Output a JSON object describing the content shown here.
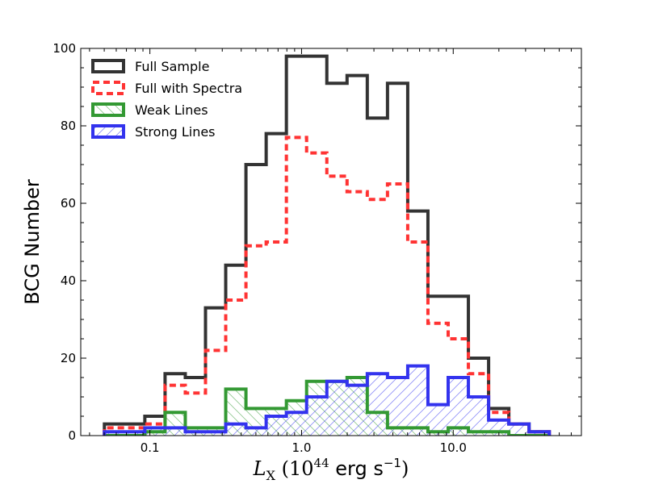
{
  "chart_data": {
    "type": "histogram",
    "title": "",
    "xlabel": "$L_\\mathrm{X}$  $(10^{44}$ erg s$^{-1})$",
    "xlabel_parts": {
      "var": "L",
      "sub": "X",
      "open": "(10",
      "exp": "44",
      "unit": " erg s",
      "unit_exp": "−1",
      "close": ")"
    },
    "ylabel": "BCG Number",
    "x_scale": "log",
    "xlim": [
      0.035,
      70
    ],
    "ylim": [
      0,
      100
    ],
    "x_ticks": [
      {
        "value": 0.1,
        "label": "0.1"
      },
      {
        "value": 1.0,
        "label": "1.0"
      },
      {
        "value": 10.0,
        "label": "10.0"
      }
    ],
    "y_ticks": [
      {
        "value": 0,
        "label": "0"
      },
      {
        "value": 20,
        "label": "20"
      },
      {
        "value": 40,
        "label": "40"
      },
      {
        "value": 60,
        "label": "60"
      },
      {
        "value": 80,
        "label": "80"
      },
      {
        "value": 100,
        "label": "100"
      }
    ],
    "log_bin_start": -1.3,
    "log_bin_width": 0.13333,
    "series": [
      {
        "name": "Full Sample",
        "color": "#333333",
        "style": "solid",
        "values": [
          3,
          3,
          5,
          16,
          15,
          33,
          44,
          70,
          78,
          98,
          98,
          91,
          93,
          82,
          91,
          58,
          36,
          36,
          20,
          7,
          3,
          1
        ]
      },
      {
        "name": "Full with Spectra",
        "color": "#ff3333",
        "style": "dashed",
        "values": [
          2,
          2,
          3,
          13,
          11,
          22,
          35,
          49,
          50,
          77,
          73,
          67,
          63,
          61,
          65,
          50,
          29,
          25,
          16,
          6,
          3,
          1
        ]
      },
      {
        "name": "Weak Lines",
        "color": "#339933",
        "style": "solid",
        "hatch": "backslash",
        "values": [
          0,
          0,
          1,
          6,
          2,
          2,
          12,
          7,
          7,
          9,
          14,
          14,
          15,
          6,
          2,
          2,
          1,
          2,
          1,
          1,
          0,
          0
        ]
      },
      {
        "name": "Strong Lines",
        "color": "#3333ee",
        "style": "solid",
        "hatch": "slash",
        "values": [
          1,
          1,
          2,
          2,
          1,
          1,
          3,
          2,
          5,
          6,
          10,
          14,
          13,
          16,
          15,
          18,
          8,
          15,
          10,
          4,
          3,
          1
        ]
      }
    ],
    "legend_position": "upper-left"
  }
}
